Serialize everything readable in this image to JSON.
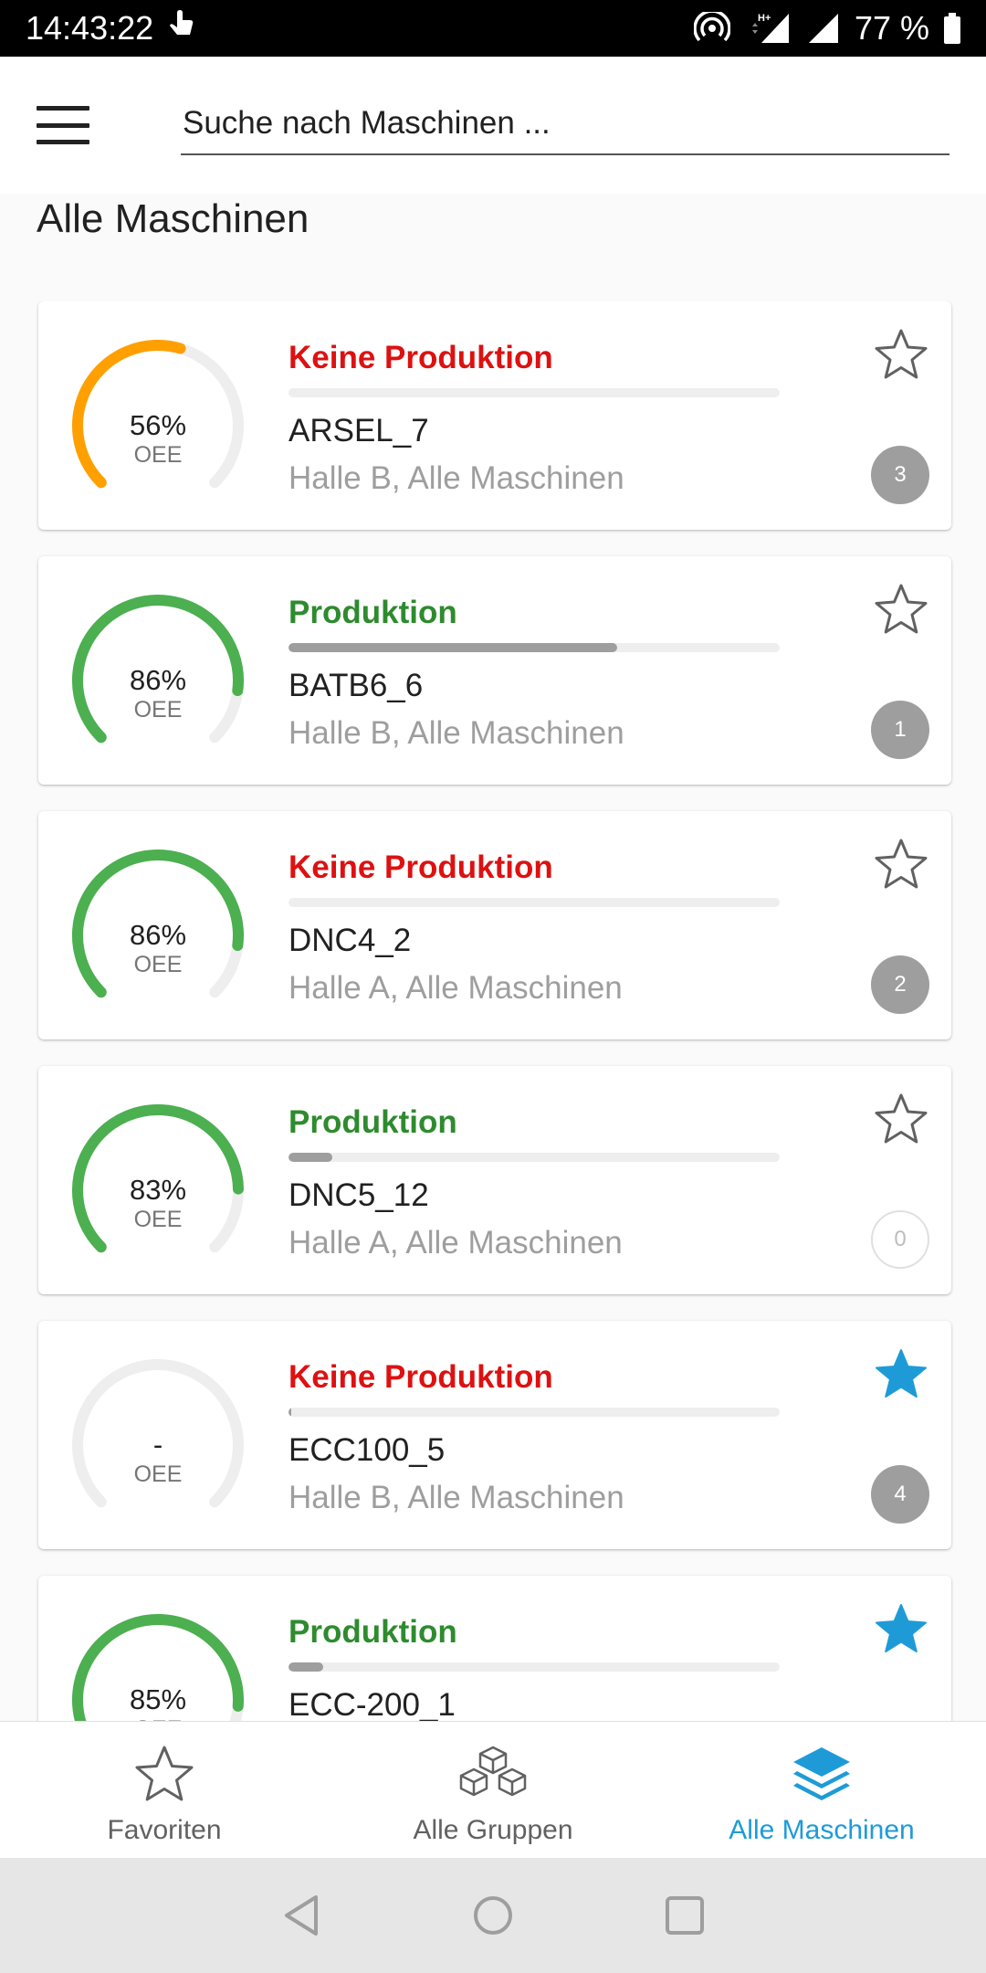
{
  "status_bar": {
    "time": "14:43:22",
    "battery": "77 %",
    "network": "H+"
  },
  "search": {
    "placeholder": "Suche nach Maschinen ..."
  },
  "page_title": "Alle Maschinen",
  "colors": {
    "running": "#2e8b2e",
    "stopped": "#dd1111",
    "gauge_green": "#4caf50",
    "gauge_orange": "#ffa000",
    "favorite": "#1e9bd7",
    "inactive": "#616161"
  },
  "machines": [
    {
      "status": "Keine Produktion",
      "state": "stopped",
      "oee": "56%",
      "oee_fraction": 0.56,
      "oee_label": "OEE",
      "gauge_color": "orange",
      "progress": 0.0,
      "name": "ARSEL_7",
      "location": "Halle B, Alle Maschinen",
      "badge": "3",
      "favorite": false
    },
    {
      "status": "Produktion",
      "state": "running",
      "oee": "86%",
      "oee_fraction": 0.86,
      "oee_label": "OEE",
      "gauge_color": "green",
      "progress": 0.67,
      "name": "BATB6_6",
      "location": "Halle B, Alle Maschinen",
      "badge": "1",
      "favorite": false
    },
    {
      "status": "Keine Produktion",
      "state": "stopped",
      "oee": "86%",
      "oee_fraction": 0.86,
      "oee_label": "OEE",
      "gauge_color": "green",
      "progress": 0.0,
      "name": "DNC4_2",
      "location": "Halle A, Alle Maschinen",
      "badge": "2",
      "favorite": false
    },
    {
      "status": "Produktion",
      "state": "running",
      "oee": "83%",
      "oee_fraction": 0.83,
      "oee_label": "OEE",
      "gauge_color": "green",
      "progress": 0.09,
      "name": "DNC5_12",
      "location": "Halle A, Alle Maschinen",
      "badge": "0",
      "favorite": false
    },
    {
      "status": "Keine Produktion",
      "state": "stopped",
      "oee": "-",
      "oee_fraction": 0,
      "oee_label": "OEE",
      "gauge_color": "none",
      "progress": 0.005,
      "name": "ECC100_5",
      "location": "Halle B, Alle Maschinen",
      "badge": "4",
      "favorite": true
    },
    {
      "status": "Produktion",
      "state": "running",
      "oee": "85%",
      "oee_fraction": 0.85,
      "oee_label": "OEE",
      "gauge_color": "green",
      "progress": 0.07,
      "name": "ECC-200_1",
      "location": "",
      "badge": "",
      "favorite": true
    }
  ],
  "bottom_nav": {
    "items": [
      {
        "label": "Favoriten",
        "icon": "star-outline-icon",
        "active": false
      },
      {
        "label": "Alle Gruppen",
        "icon": "cubes-icon",
        "active": false
      },
      {
        "label": "Alle Maschinen",
        "icon": "layers-icon",
        "active": true
      }
    ]
  }
}
